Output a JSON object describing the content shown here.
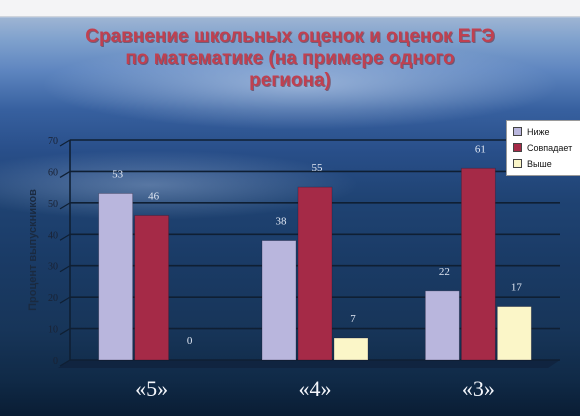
{
  "slide": {
    "title_lines": [
      "Сравнение школьных оценок и оценок ЕГЭ",
      "по математике (на примере одного",
      "региона)"
    ]
  },
  "colors": {
    "series_below": "#b9b6dd",
    "series_match": "#a52a47",
    "series_above": "#fbf6c8",
    "title": "#c04050",
    "grid": "#0f1f33"
  },
  "chart_data": {
    "type": "bar",
    "categories": [
      "«5»",
      "«4»",
      "«3»"
    ],
    "series": [
      {
        "name": "Ниже",
        "values": [
          53,
          38,
          22
        ]
      },
      {
        "name": "Совпадает",
        "values": [
          46,
          55,
          61
        ]
      },
      {
        "name": "Выше",
        "values": [
          0,
          7,
          17
        ]
      }
    ],
    "title": "Сравнение школьных оценок и оценок ЕГЭ по математике (на примере одного региона)",
    "xlabel": "",
    "ylabel": "Процент выпускников",
    "ylim": [
      0,
      70
    ],
    "yticks": [
      0,
      10,
      20,
      30,
      40,
      50,
      60,
      70
    ],
    "grid": true,
    "legend_position": "top-right"
  }
}
